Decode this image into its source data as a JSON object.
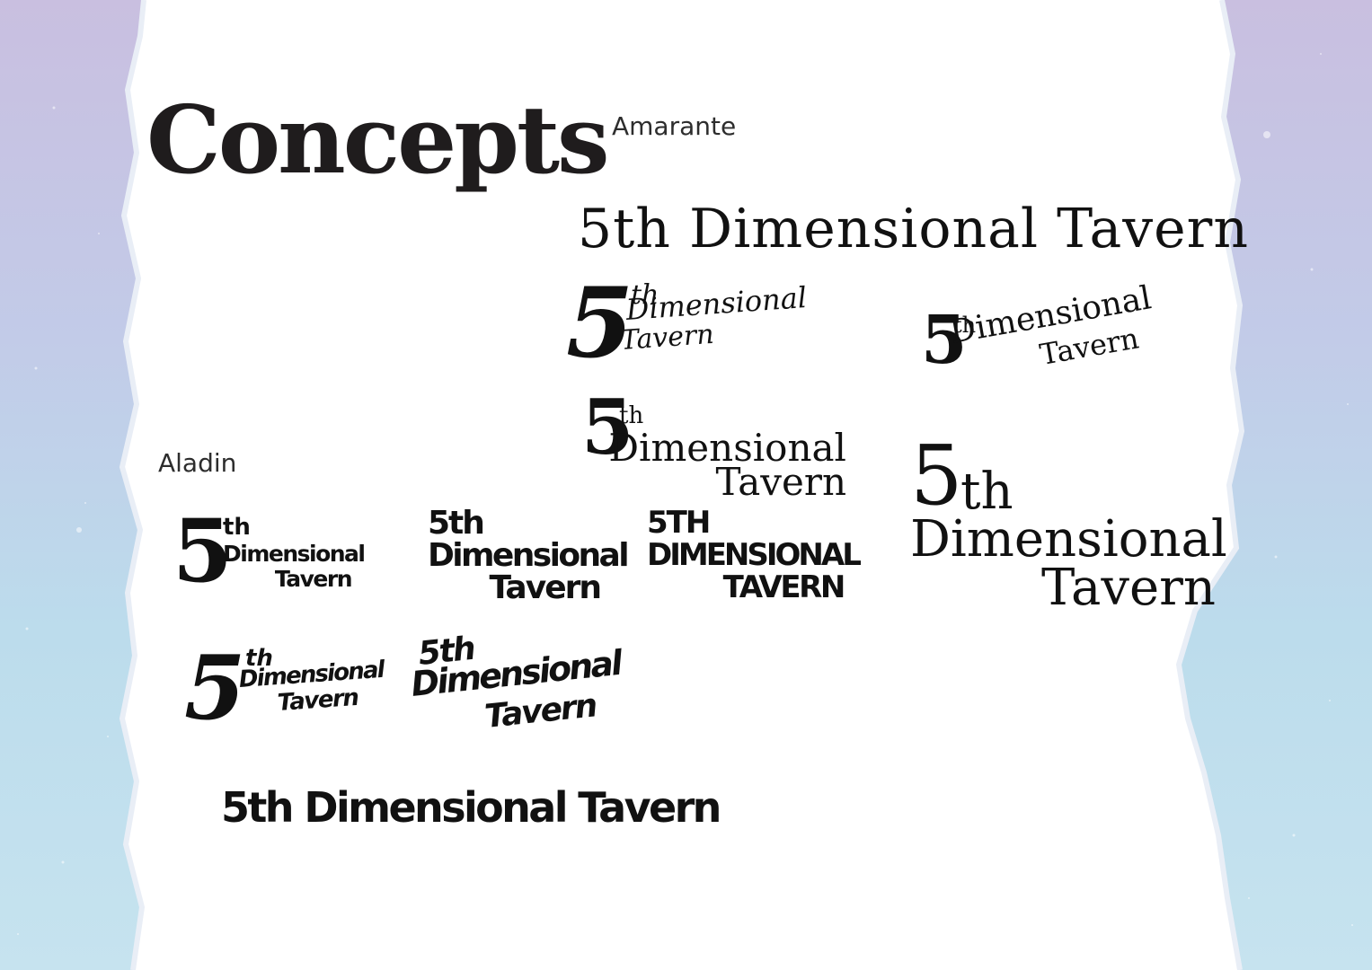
{
  "page": {
    "title": "Concepts",
    "colors": {
      "background_top": "#c9bfe0",
      "background_bottom": "#c6e3ef",
      "paper": "#ffffff",
      "ink": "#111111"
    }
  },
  "labels": {
    "amarante": "Amarante",
    "aladin": "Aladin"
  },
  "logo": {
    "number": "5",
    "suffix": "th",
    "word_dimensional": "Dimensional",
    "word_tavern": "Tavern",
    "full": "5th Dimensional Tavern",
    "number_suffix": "5th",
    "caps_number_suffix": "5TH",
    "caps_dimensional": "DIMENSIONAL",
    "caps_tavern": "TAVERN"
  }
}
